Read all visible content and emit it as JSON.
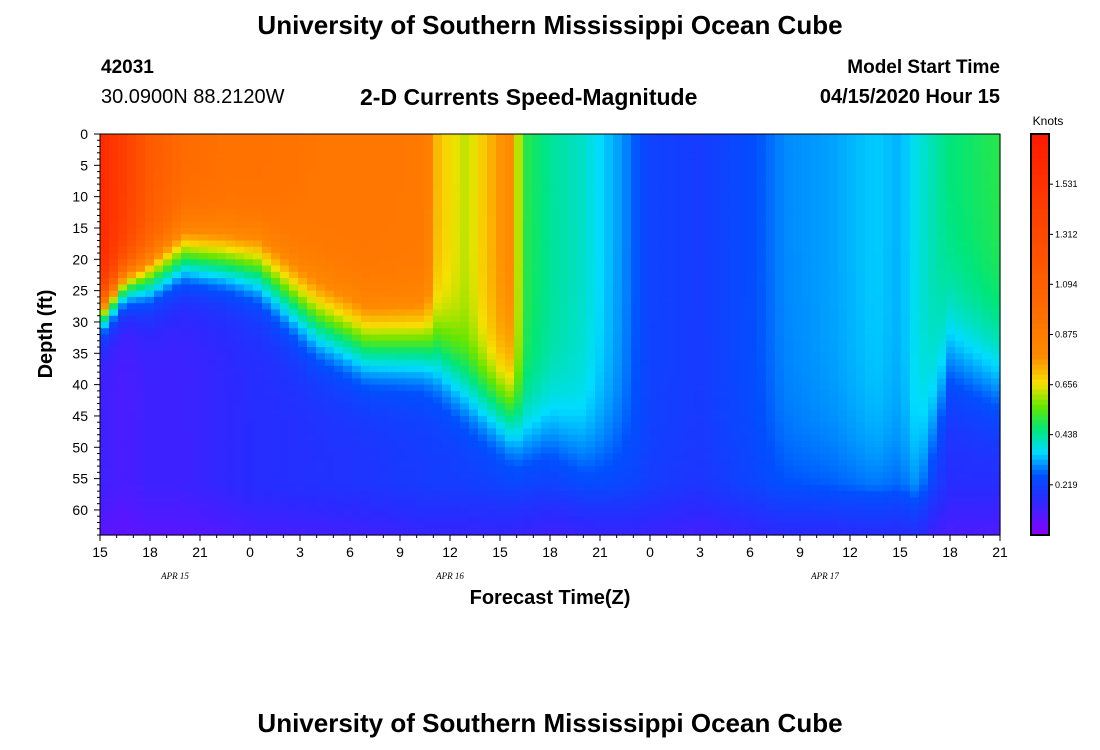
{
  "header": {
    "title_top": "University of Southern Mississippi Ocean Cube",
    "title_bottom": "University of Southern Mississippi Ocean Cube",
    "station_id": "42031",
    "station_location": "30.0900N 88.2120W",
    "chart_title": "2-D Currents Speed-Magnitude",
    "model_start_label": "Model Start Time",
    "model_start_value": "04/15/2020 Hour 15"
  },
  "chart_data": {
    "type": "heatmap",
    "title": "2-D Currents Speed-Magnitude",
    "xlabel": "Forecast Time(Z)",
    "ylabel": "Depth (ft)",
    "xlim": [
      0,
      54
    ],
    "ylim": [
      0,
      64
    ],
    "x_ticks": [
      {
        "hour": 0,
        "label": "15"
      },
      {
        "hour": 3,
        "label": "18"
      },
      {
        "hour": 6,
        "label": "21"
      },
      {
        "hour": 9,
        "label": "0"
      },
      {
        "hour": 12,
        "label": "3"
      },
      {
        "hour": 15,
        "label": "6"
      },
      {
        "hour": 18,
        "label": "9"
      },
      {
        "hour": 21,
        "label": "12"
      },
      {
        "hour": 24,
        "label": "15"
      },
      {
        "hour": 27,
        "label": "18"
      },
      {
        "hour": 30,
        "label": "21"
      },
      {
        "hour": 33,
        "label": "0"
      },
      {
        "hour": 36,
        "label": "3"
      },
      {
        "hour": 39,
        "label": "6"
      },
      {
        "hour": 42,
        "label": "9"
      },
      {
        "hour": 45,
        "label": "12"
      },
      {
        "hour": 48,
        "label": "15"
      },
      {
        "hour": 51,
        "label": "18"
      },
      {
        "hour": 54,
        "label": "21"
      }
    ],
    "date_labels": [
      {
        "hour": 4.5,
        "label": "APR 15"
      },
      {
        "hour": 21,
        "label": "APR 16"
      },
      {
        "hour": 43.5,
        "label": "APR 17"
      }
    ],
    "y_ticks": [
      0,
      5,
      10,
      15,
      20,
      25,
      30,
      35,
      40,
      45,
      50,
      55,
      60
    ],
    "colorbar": {
      "unit": "Knots",
      "range": [
        0,
        1.75
      ],
      "tick_values": [
        1.531,
        1.312,
        1.094,
        0.875,
        0.656,
        0.438,
        0.219
      ],
      "tick_labels": [
        "1.531",
        "1.312",
        "1.094",
        "0.875",
        "0.656",
        "0.438",
        "0.219"
      ],
      "color_stops": [
        {
          "v": 0.0,
          "color": "#8a00ff"
        },
        {
          "v": 0.15,
          "color": "#2a2aff"
        },
        {
          "v": 0.26,
          "color": "#0050ff"
        },
        {
          "v": 0.36,
          "color": "#00dcff"
        },
        {
          "v": 0.46,
          "color": "#00e67a"
        },
        {
          "v": 0.56,
          "color": "#66e600"
        },
        {
          "v": 0.66,
          "color": "#f5e100"
        },
        {
          "v": 0.78,
          "color": "#ff8a00"
        },
        {
          "v": 1.0,
          "color": "#ff6a00"
        },
        {
          "v": 1.3,
          "color": "#ff4a00"
        },
        {
          "v": 1.75,
          "color": "#ff1a00"
        }
      ]
    },
    "speed_profiles": [
      {
        "hour": 0,
        "surface": 1.6,
        "shear_depth": 28,
        "transition_width": 9,
        "deep": 0.12
      },
      {
        "hour": 1.5,
        "surface": 1.4,
        "shear_depth": 23,
        "transition_width": 10,
        "deep": 0.1
      },
      {
        "hour": 3,
        "surface": 1.15,
        "shear_depth": 22,
        "transition_width": 12,
        "deep": 0.12
      },
      {
        "hour": 5,
        "surface": 1.0,
        "shear_depth": 19,
        "transition_width": 13,
        "deep": 0.12
      },
      {
        "hour": 7.5,
        "surface": 0.95,
        "shear_depth": 20,
        "transition_width": 13,
        "deep": 0.14
      },
      {
        "hour": 9.5,
        "surface": 0.95,
        "shear_depth": 21,
        "transition_width": 14,
        "deep": 0.16
      },
      {
        "hour": 13,
        "surface": 0.92,
        "shear_depth": 29,
        "transition_width": 16,
        "deep": 0.17
      },
      {
        "hour": 16,
        "surface": 0.92,
        "shear_depth": 33,
        "transition_width": 16,
        "deep": 0.18
      },
      {
        "hour": 19.5,
        "surface": 0.9,
        "shear_depth": 33,
        "transition_width": 16,
        "deep": 0.2
      },
      {
        "hour": 20.3,
        "surface": 0.7,
        "shear_depth": 35,
        "transition_width": 18,
        "deep": 0.2
      },
      {
        "hour": 22,
        "surface": 0.62,
        "shear_depth": 40,
        "transition_width": 18,
        "deep": 0.2
      },
      {
        "hour": 24.5,
        "surface": 0.8,
        "shear_depth": 44,
        "transition_width": 18,
        "deep": 0.2
      },
      {
        "hour": 25.5,
        "surface": 0.5,
        "shear_depth": 48,
        "transition_width": 20,
        "deep": 0.18
      },
      {
        "hour": 27,
        "surface": 0.44,
        "shear_depth": 48,
        "transition_width": 22,
        "deep": 0.17
      },
      {
        "hour": 29,
        "surface": 0.4,
        "shear_depth": 52,
        "transition_width": 24,
        "deep": 0.17
      },
      {
        "hour": 31.5,
        "surface": 0.3,
        "shear_depth": 55,
        "transition_width": 30,
        "deep": 0.17
      },
      {
        "hour": 33,
        "surface": 0.22,
        "shear_depth": 60,
        "transition_width": 30,
        "deep": 0.17
      },
      {
        "hour": 36,
        "surface": 0.2,
        "shear_depth": 60,
        "transition_width": 30,
        "deep": 0.15
      },
      {
        "hour": 39,
        "surface": 0.25,
        "shear_depth": 60,
        "transition_width": 30,
        "deep": 0.17
      },
      {
        "hour": 41,
        "surface": 0.3,
        "shear_depth": 60,
        "transition_width": 30,
        "deep": 0.18
      },
      {
        "hour": 44,
        "surface": 0.32,
        "shear_depth": 60,
        "transition_width": 30,
        "deep": 0.18
      },
      {
        "hour": 46.5,
        "surface": 0.35,
        "shear_depth": 60,
        "transition_width": 30,
        "deep": 0.18
      },
      {
        "hour": 48,
        "surface": 0.33,
        "shear_depth": 60,
        "transition_width": 30,
        "deep": 0.18
      },
      {
        "hour": 49,
        "surface": 0.38,
        "shear_depth": 60,
        "transition_width": 30,
        "deep": 0.18
      },
      {
        "hour": 51,
        "surface": 0.46,
        "shear_depth": 36,
        "transition_width": 26,
        "deep": 0.15
      },
      {
        "hour": 54,
        "surface": 0.5,
        "shear_depth": 40,
        "transition_width": 26,
        "deep": 0.14
      }
    ]
  }
}
